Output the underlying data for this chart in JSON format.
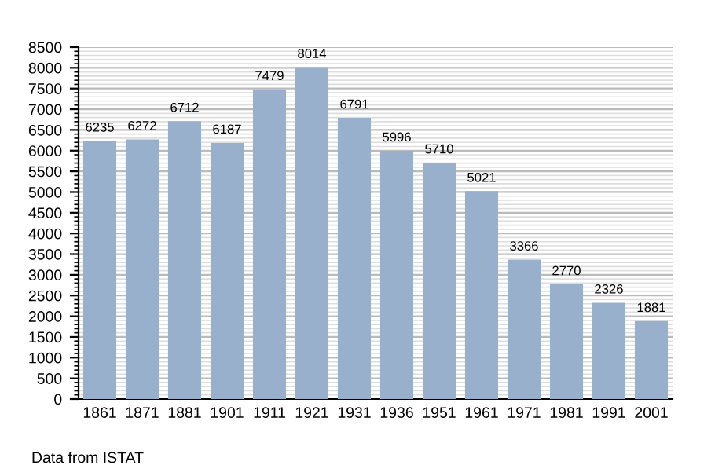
{
  "chart_data": {
    "type": "bar",
    "categories": [
      "1861",
      "1871",
      "1881",
      "1901",
      "1911",
      "1921",
      "1931",
      "1936",
      "1951",
      "1961",
      "1971",
      "1981",
      "1991",
      "2001"
    ],
    "values": [
      6235,
      6272,
      6712,
      6187,
      7479,
      8014,
      6791,
      5996,
      5710,
      5021,
      3366,
      2770,
      2326,
      1881
    ],
    "color": "#98b0cc",
    "data_labels": true,
    "ylim": [
      0,
      8500
    ],
    "yticks": [
      0,
      500,
      1000,
      1500,
      2000,
      2500,
      3000,
      3500,
      4000,
      4500,
      5000,
      5500,
      6000,
      6500,
      7000,
      7500,
      8000,
      8500
    ],
    "grid": "y",
    "annotations": [
      "Data from ISTAT"
    ]
  }
}
